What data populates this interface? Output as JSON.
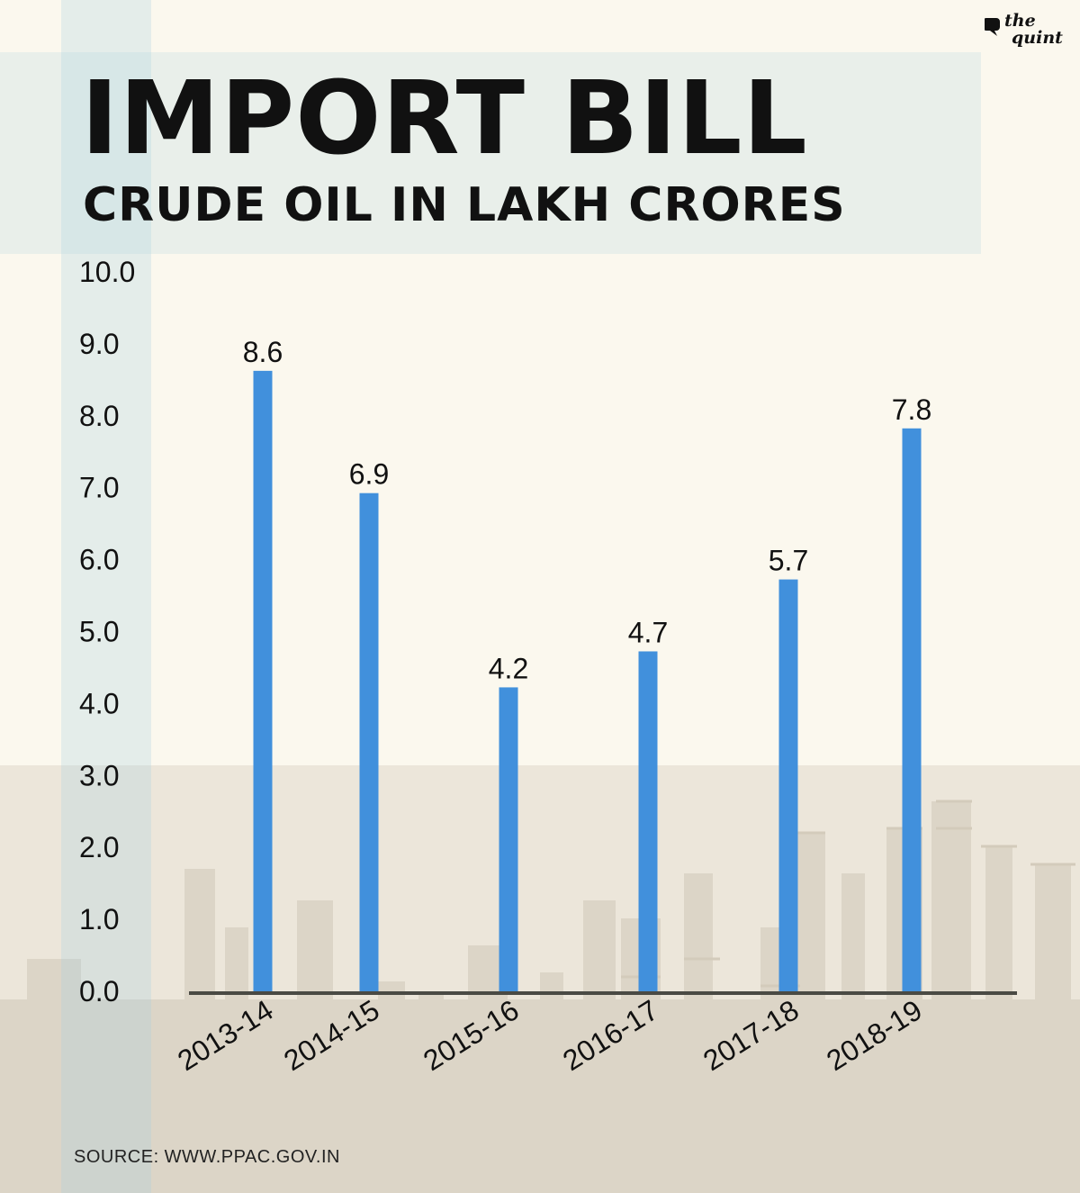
{
  "header": {
    "title": "IMPORT BILL",
    "subtitle": "CRUDE OIL IN LAKH CRORES"
  },
  "logo": {
    "line1": "the",
    "line2": "quint"
  },
  "source": "SOURCE: WWW.PPAC.GOV.IN",
  "colors": {
    "bar": "#4190dc",
    "axis": "#4a4a44",
    "background": "#fbf8ee"
  },
  "chart_data": {
    "type": "bar",
    "title": "IMPORT BILL",
    "subtitle": "CRUDE OIL IN LAKH CRORES",
    "categories": [
      "2013-14",
      "2014-15",
      "2015-16",
      "2016-17",
      "2017-18",
      "2018-19"
    ],
    "values": [
      8.6,
      6.9,
      4.2,
      4.7,
      5.7,
      7.8
    ],
    "data_labels": [
      "8.6",
      "6.9",
      "4.2",
      "4.7",
      "5.7",
      "7.8"
    ],
    "yticks": [
      "0.0",
      "1.0",
      "2.0",
      "3.0",
      "4.0",
      "5.0",
      "6.0",
      "7.0",
      "8.0",
      "9.0",
      "10.0"
    ],
    "ylim": [
      0,
      10
    ],
    "xlabel": "",
    "ylabel": "",
    "grid": false,
    "legend": "none"
  }
}
